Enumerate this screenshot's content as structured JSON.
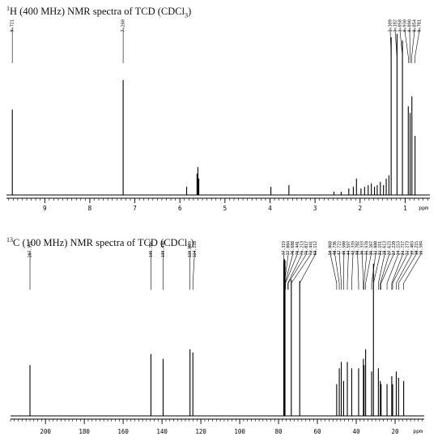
{
  "chart_data": [
    {
      "type": "line",
      "nucleus": "1H",
      "title_sup": "1",
      "title_main": "H (400 MHz) NMR spectra of TCD (CDCl",
      "title_sub": "3",
      "title_end": ")",
      "xlabel": "ppm",
      "xlim": [
        9.85,
        0.45
      ],
      "axis_reversed": true,
      "ticks": [
        9,
        8,
        7,
        6,
        5,
        4,
        3,
        2,
        1
      ],
      "tick_labels": [
        "9",
        "8",
        "7",
        "6",
        "5",
        "4",
        "3",
        "2",
        "1"
      ],
      "peak_labels": [
        {
          "shift": 9.721,
          "label": "9.721"
        },
        {
          "shift": 7.26,
          "label": "7.260"
        },
        {
          "shift": 1.309,
          "label": "1.309"
        },
        {
          "shift": 1.182,
          "label": "1.182"
        },
        {
          "shift": 1.058,
          "label": "1.058"
        },
        {
          "shift": 0.854,
          "label": "0.854"
        },
        {
          "shift": 0.93,
          "label": "0.930"
        },
        {
          "shift": 0.89,
          "label": "0.890"
        },
        {
          "shift": 0.781,
          "label": "0.781"
        }
      ],
      "peaks": [
        {
          "shift": 9.72,
          "height": 0.52
        },
        {
          "shift": 7.26,
          "height": 0.7
        },
        {
          "shift": 5.85,
          "height": 0.05
        },
        {
          "shift": 5.62,
          "height": 0.13
        },
        {
          "shift": 5.6,
          "height": 0.17
        },
        {
          "shift": 5.58,
          "height": 0.1
        },
        {
          "shift": 3.98,
          "height": 0.05
        },
        {
          "shift": 3.58,
          "height": 0.06
        },
        {
          "shift": 2.58,
          "height": 0.02
        },
        {
          "shift": 2.42,
          "height": 0.02
        },
        {
          "shift": 2.25,
          "height": 0.04
        },
        {
          "shift": 2.15,
          "height": 0.05
        },
        {
          "shift": 2.08,
          "height": 0.1
        },
        {
          "shift": 1.98,
          "height": 0.04
        },
        {
          "shift": 1.9,
          "height": 0.05
        },
        {
          "shift": 1.82,
          "height": 0.06
        },
        {
          "shift": 1.75,
          "height": 0.07
        },
        {
          "shift": 1.68,
          "height": 0.05
        },
        {
          "shift": 1.62,
          "height": 0.06
        },
        {
          "shift": 1.55,
          "height": 0.08
        },
        {
          "shift": 1.48,
          "height": 0.06
        },
        {
          "shift": 1.42,
          "height": 0.1
        },
        {
          "shift": 1.36,
          "height": 0.12
        },
        {
          "shift": 1.31,
          "height": 0.96
        },
        {
          "shift": 1.18,
          "height": 0.98
        },
        {
          "shift": 1.06,
          "height": 0.94
        },
        {
          "shift": 0.93,
          "height": 0.54
        },
        {
          "shift": 0.89,
          "height": 0.5
        },
        {
          "shift": 0.85,
          "height": 0.6
        },
        {
          "shift": 0.78,
          "height": 0.36
        }
      ]
    },
    {
      "type": "line",
      "nucleus": "13C",
      "title_sup": "13",
      "title_main": "C (100 MHz) NMR spectra of TCD (CDCl",
      "title_sub": "3",
      "title_end": ")",
      "xlabel": "ppm",
      "xlim": [
        218,
        5
      ],
      "axis_reversed": true,
      "ticks": [
        200,
        180,
        160,
        140,
        120,
        100,
        80,
        60,
        40,
        20
      ],
      "tick_labels": [
        "200",
        "180",
        "160",
        "140",
        "120",
        "100",
        "80",
        "60",
        "40",
        "20"
      ],
      "peak_labels": [
        {
          "shift": 207.991,
          "label": "207.991"
        },
        {
          "shift": 145.706,
          "label": "145.706"
        },
        {
          "shift": 139.44,
          "label": "139.440"
        },
        {
          "shift": 125.599,
          "label": "125.599"
        },
        {
          "shift": 124.118,
          "label": "124.118"
        },
        {
          "shift": 77.319,
          "label": "77.319"
        },
        {
          "shift": 77.004,
          "label": "77.004"
        },
        {
          "shift": 76.688,
          "label": "76.688"
        },
        {
          "shift": 76.441,
          "label": "76.441"
        },
        {
          "shift": 75.213,
          "label": "75.213"
        },
        {
          "shift": 75.017,
          "label": "75.017"
        },
        {
          "shift": 73.441,
          "label": "73.441"
        },
        {
          "shift": 69.112,
          "label": "69.112"
        },
        {
          "shift": 50.068,
          "label": "50.068"
        },
        {
          "shift": 48.736,
          "label": "48.736"
        },
        {
          "shift": 47.722,
          "label": "47.722"
        },
        {
          "shift": 46.5,
          "label": "46.500"
        },
        {
          "shift": 44.597,
          "label": "44.597"
        },
        {
          "shift": 42.339,
          "label": "42.339"
        },
        {
          "shift": 38.782,
          "label": "38.782"
        },
        {
          "shift": 36.333,
          "label": "36.333"
        },
        {
          "shift": 35.978,
          "label": "35.978"
        },
        {
          "shift": 35.167,
          "label": "35.167"
        },
        {
          "shift": 32.08,
          "label": "32.080"
        },
        {
          "shift": 31.151,
          "label": "31.151"
        },
        {
          "shift": 28.613,
          "label": "28.613"
        },
        {
          "shift": 27.623,
          "label": "27.623"
        },
        {
          "shift": 27.22,
          "label": "27.220"
        },
        {
          "shift": 24.153,
          "label": "24.153"
        },
        {
          "shift": 21.717,
          "label": "21.717"
        },
        {
          "shift": 21.273,
          "label": "21.273"
        },
        {
          "shift": 19.403,
          "label": "19.403"
        },
        {
          "shift": 18.215,
          "label": "18.215"
        },
        {
          "shift": 15.584,
          "label": "15.584"
        }
      ],
      "peaks": [
        {
          "shift": 207.99,
          "height": 0.32
        },
        {
          "shift": 145.71,
          "height": 0.39
        },
        {
          "shift": 139.44,
          "height": 0.36
        },
        {
          "shift": 125.6,
          "height": 0.42
        },
        {
          "shift": 124.12,
          "height": 0.4
        },
        {
          "shift": 77.32,
          "height": 0.98
        },
        {
          "shift": 77.0,
          "height": 0.99
        },
        {
          "shift": 76.69,
          "height": 0.98
        },
        {
          "shift": 73.44,
          "height": 0.86
        },
        {
          "shift": 69.11,
          "height": 0.85
        },
        {
          "shift": 50.07,
          "height": 0.2
        },
        {
          "shift": 48.74,
          "height": 0.3
        },
        {
          "shift": 47.72,
          "height": 0.34
        },
        {
          "shift": 46.5,
          "height": 0.22
        },
        {
          "shift": 44.6,
          "height": 0.34
        },
        {
          "shift": 42.34,
          "height": 0.3
        },
        {
          "shift": 38.78,
          "height": 0.3
        },
        {
          "shift": 36.33,
          "height": 0.36
        },
        {
          "shift": 35.98,
          "height": 0.32
        },
        {
          "shift": 35.17,
          "height": 0.42
        },
        {
          "shift": 32.08,
          "height": 0.28
        },
        {
          "shift": 31.15,
          "height": 0.96
        },
        {
          "shift": 28.61,
          "height": 0.3
        },
        {
          "shift": 27.62,
          "height": 0.22
        },
        {
          "shift": 27.22,
          "height": 0.2
        },
        {
          "shift": 24.15,
          "height": 0.2
        },
        {
          "shift": 21.72,
          "height": 0.25
        },
        {
          "shift": 21.27,
          "height": 0.2
        },
        {
          "shift": 19.4,
          "height": 0.28
        },
        {
          "shift": 18.22,
          "height": 0.24
        },
        {
          "shift": 15.58,
          "height": 0.22
        }
      ]
    }
  ]
}
